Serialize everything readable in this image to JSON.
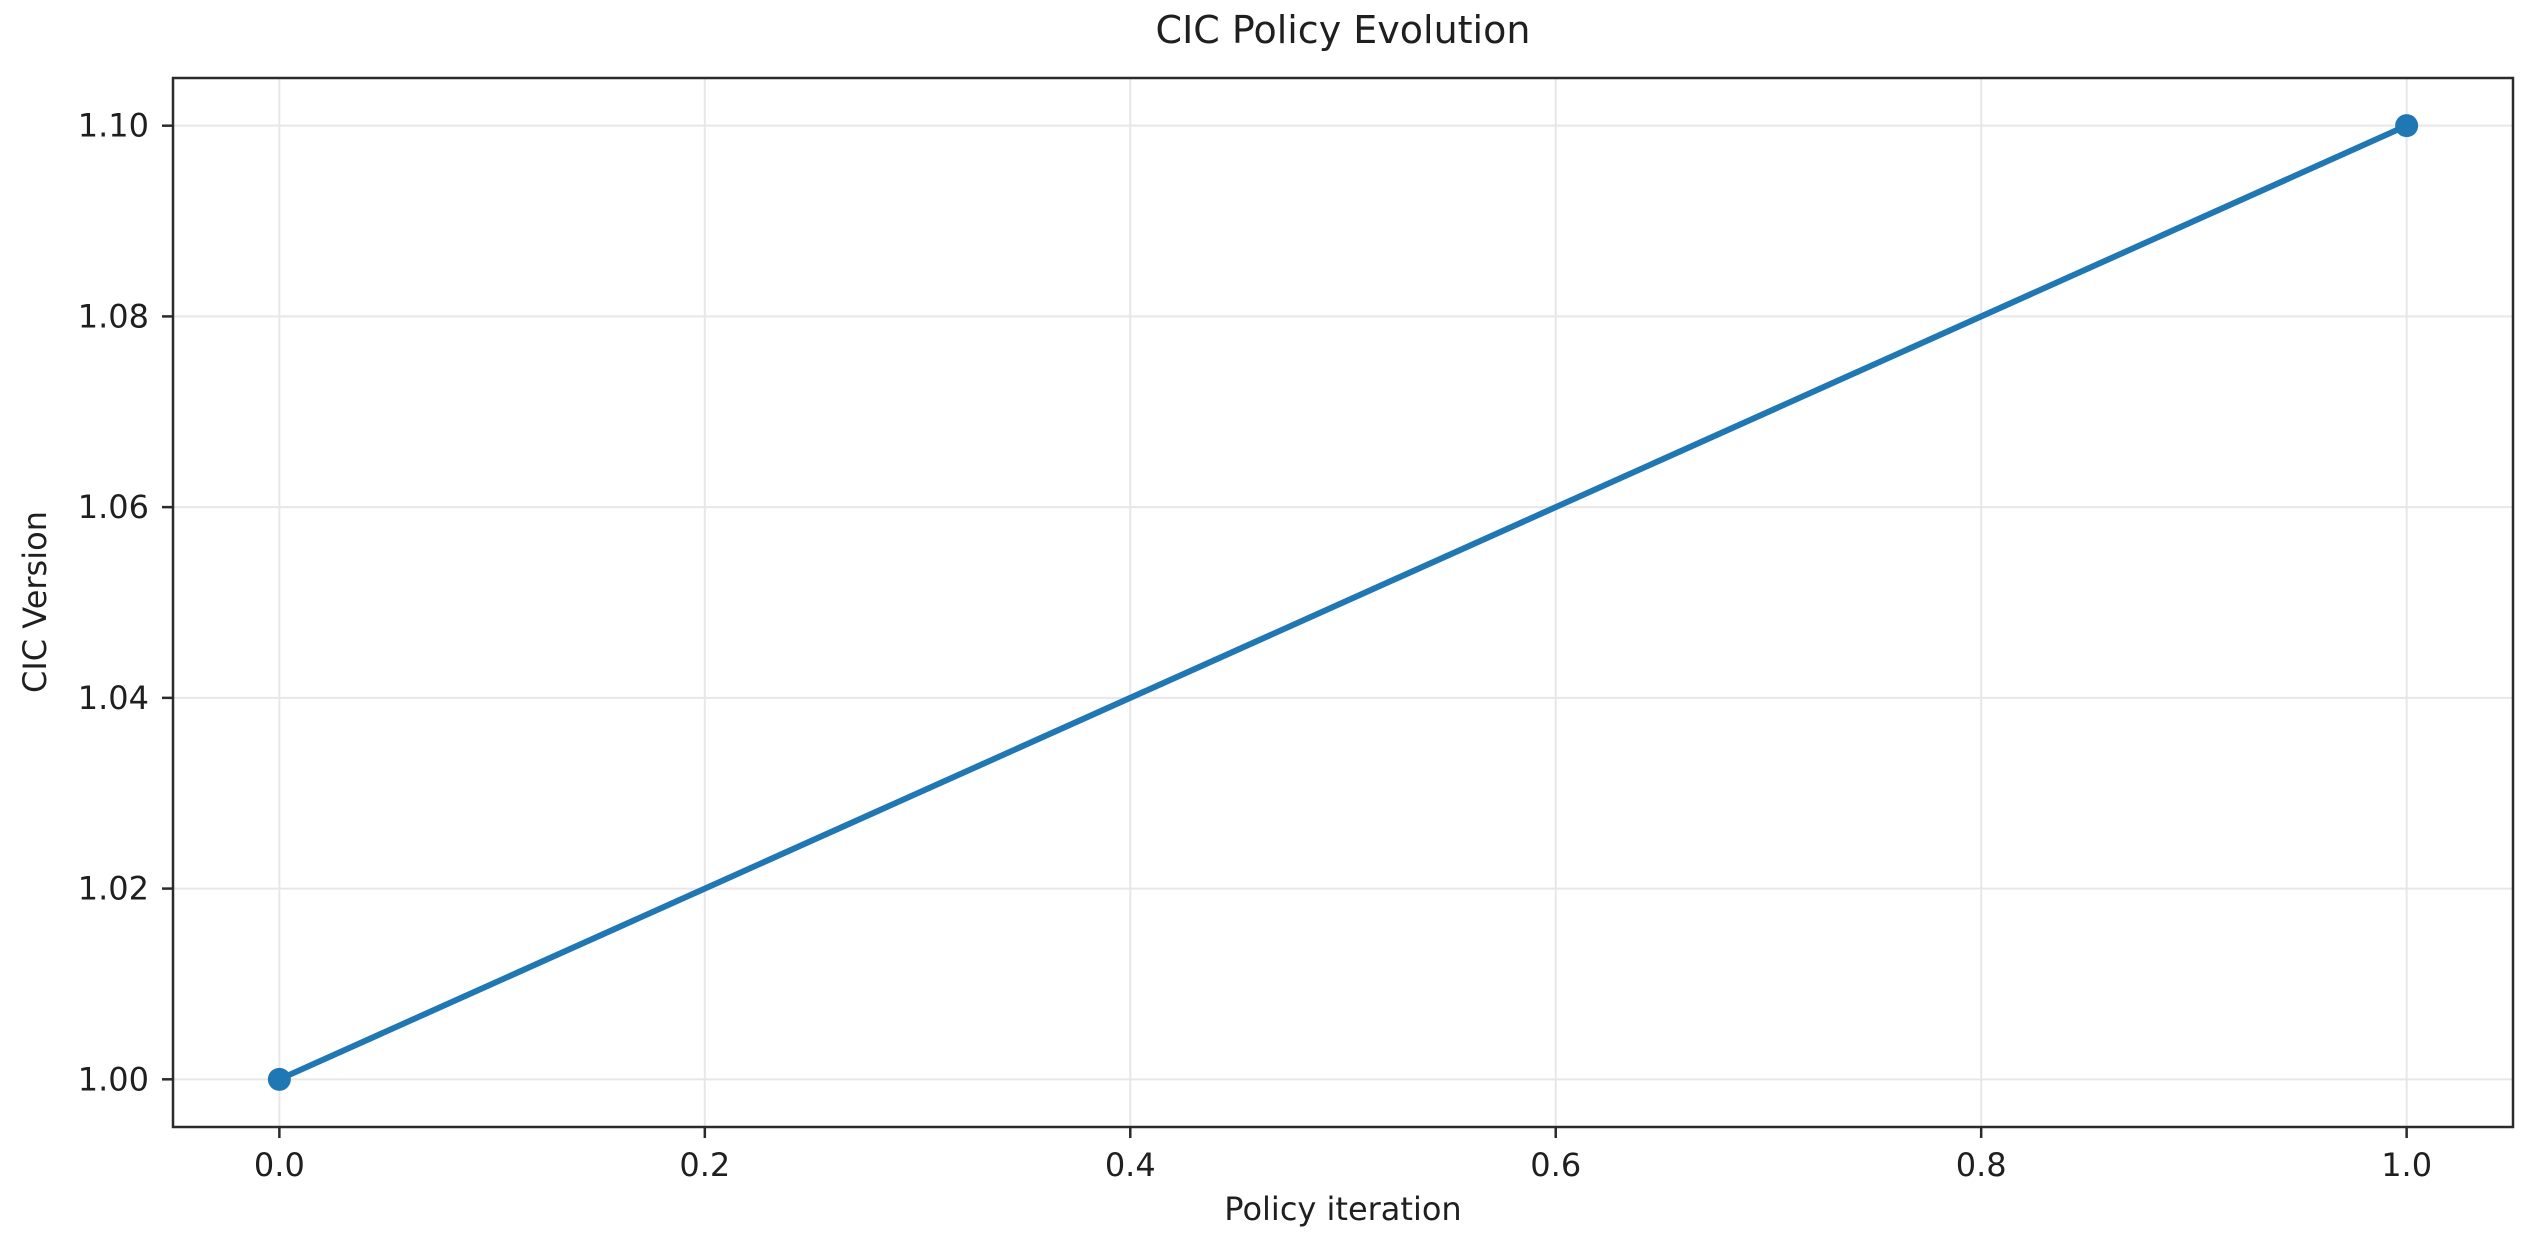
{
  "chart_data": {
    "type": "line",
    "title": "CIC Policy Evolution",
    "xlabel": "Policy iteration",
    "ylabel": "CIC Version",
    "series": [
      {
        "x": [
          0.0,
          1.0
        ],
        "y": [
          1.0,
          1.1
        ],
        "color": "#1f77b4",
        "marker": "circle"
      }
    ],
    "xlim": [
      -0.05,
      1.05
    ],
    "ylim": [
      0.995,
      1.105
    ],
    "xticks": {
      "values": [
        0.0,
        0.2,
        0.4,
        0.6,
        0.8,
        1.0
      ],
      "labels": [
        "0.0",
        "0.2",
        "0.4",
        "0.6",
        "0.8",
        "1.0"
      ]
    },
    "yticks": {
      "values": [
        1.0,
        1.02,
        1.04,
        1.06,
        1.08,
        1.1
      ],
      "labels": [
        "1.00",
        "1.02",
        "1.04",
        "1.06",
        "1.08",
        "1.10"
      ]
    },
    "grid": true,
    "legend": false,
    "colors": {
      "line": "#1f77b4",
      "grid": "#e7e7e7",
      "spine": "#2b2b2b",
      "tick": "#2b2b2b",
      "text": "#1f1f1f",
      "background": "#ffffff"
    }
  }
}
